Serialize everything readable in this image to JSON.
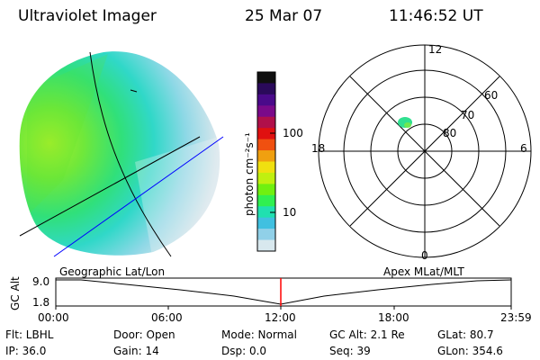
{
  "header": {
    "instrument": "Ultraviolet Imager",
    "date": "25 Mar 07",
    "time": "11:46:52 UT"
  },
  "colorbar": {
    "unit_label": "photon cm⁻²s⁻¹",
    "ticks": [
      "100",
      "10"
    ],
    "colors": [
      "#101010",
      "#2a0a5a",
      "#4a0a8a",
      "#7a0a8a",
      "#b0104a",
      "#e01010",
      "#f05010",
      "#f0a010",
      "#f0e010",
      "#c0f010",
      "#70f010",
      "#30f050",
      "#20e0b0",
      "#40c0e0",
      "#90d0e8",
      "#d8e8ee"
    ]
  },
  "polar": {
    "hour_labels": [
      "12",
      "18",
      "6",
      "0"
    ],
    "lat_labels": [
      "60",
      "70",
      "80"
    ]
  },
  "timeline": {
    "left_label": "Geographic Lat/Lon",
    "right_label": "Apex MLat/MLT",
    "axis_title": "GC Alt",
    "y_ticks": [
      "9.0",
      "1.8"
    ],
    "x_ticks": [
      "00:00",
      "06:00",
      "12:00",
      "18:00",
      "23:59"
    ],
    "current_marker_color": "#ff0000"
  },
  "status": {
    "filter": "Flt: LBHL",
    "door": "Door: Open",
    "mode": "Mode: Normal",
    "gc_alt": "GC Alt: 2.1 Re",
    "glat": "GLat:  80.7",
    "ip": "IP: 36.0",
    "gain": "Gain: 14",
    "dsp": "Dsp:     0.0",
    "seq": "Seq: 39",
    "glon": "GLon: 354.6"
  }
}
